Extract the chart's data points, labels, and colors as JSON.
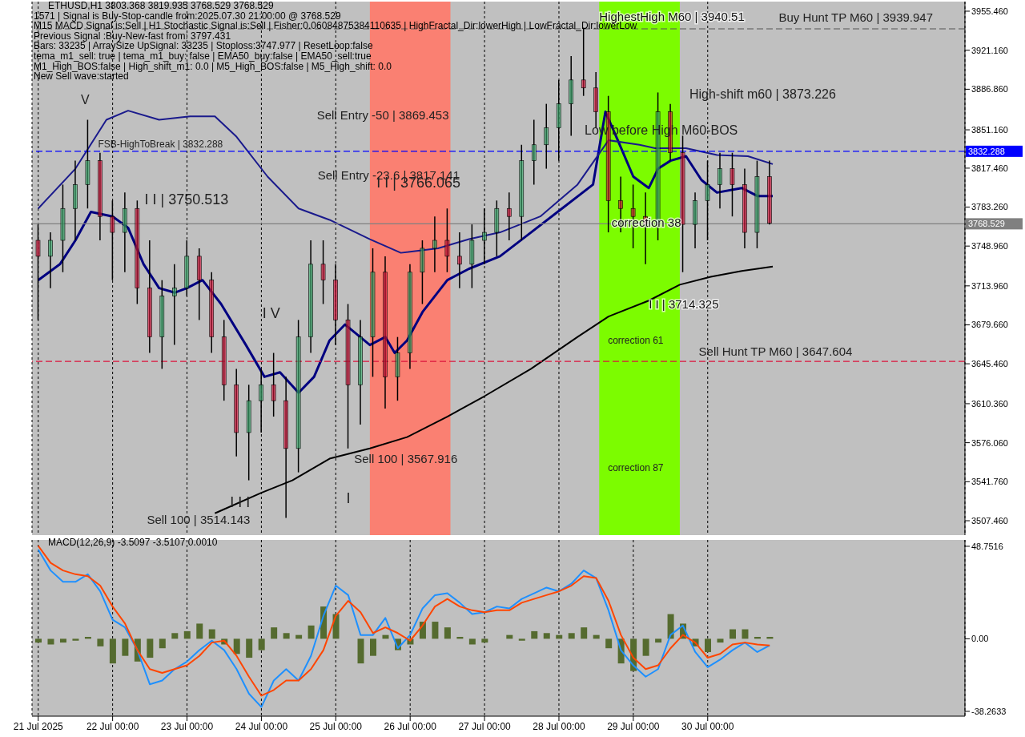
{
  "chart_data": [
    {
      "type": "candlestick",
      "title": "ETHUSD,H1  3803.368 3819.935 3768.529 3768.529",
      "x": [
        "2025-07-21T00:00",
        "2025-07-21T04:00",
        "2025-07-21T08:00",
        "2025-07-21T12:00",
        "2025-07-21T16:00",
        "2025-07-21T20:00",
        "2025-07-22T00:00",
        "2025-07-22T04:00",
        "2025-07-22T08:00",
        "2025-07-22T12:00",
        "2025-07-22T16:00",
        "2025-07-22T20:00",
        "2025-07-23T00:00",
        "2025-07-23T04:00",
        "2025-07-23T08:00",
        "2025-07-23T12:00",
        "2025-07-23T16:00",
        "2025-07-23T20:00",
        "2025-07-24T00:00",
        "2025-07-24T04:00",
        "2025-07-24T08:00",
        "2025-07-24T12:00",
        "2025-07-24T16:00",
        "2025-07-24T20:00",
        "2025-07-25T00:00",
        "2025-07-25T04:00",
        "2025-07-25T08:00",
        "2025-07-25T12:00",
        "2025-07-25T16:00",
        "2025-07-25T20:00",
        "2025-07-26T00:00",
        "2025-07-26T04:00",
        "2025-07-26T08:00",
        "2025-07-26T12:00",
        "2025-07-26T16:00",
        "2025-07-26T20:00",
        "2025-07-27T00:00",
        "2025-07-27T04:00",
        "2025-07-27T08:00",
        "2025-07-27T12:00",
        "2025-07-27T16:00",
        "2025-07-27T20:00",
        "2025-07-28T00:00",
        "2025-07-28T04:00",
        "2025-07-28T08:00",
        "2025-07-28T12:00",
        "2025-07-28T16:00",
        "2025-07-28T20:00",
        "2025-07-29T00:00",
        "2025-07-29T04:00",
        "2025-07-29T08:00",
        "2025-07-29T12:00",
        "2025-07-29T16:00",
        "2025-07-29T20:00",
        "2025-07-30T00:00",
        "2025-07-30T04:00",
        "2025-07-30T08:00",
        "2025-07-30T12:00",
        "2025-07-30T16:00",
        "2025-07-30T20:00"
      ],
      "ohlc": [
        [
          3754,
          3768,
          3684,
          3740
        ],
        [
          3740,
          3761,
          3712,
          3754
        ],
        [
          3754,
          3803,
          3726,
          3782
        ],
        [
          3782,
          3824,
          3754,
          3803
        ],
        [
          3803,
          3860,
          3782,
          3824
        ],
        [
          3824,
          3831,
          3754,
          3775
        ],
        [
          3775,
          3789,
          3719,
          3761
        ],
        [
          3761,
          3796,
          3726,
          3782
        ],
        [
          3782,
          3789,
          3698,
          3712
        ],
        [
          3712,
          3754,
          3655,
          3669
        ],
        [
          3669,
          3719,
          3641,
          3705
        ],
        [
          3705,
          3733,
          3662,
          3712
        ],
        [
          3712,
          3754,
          3705,
          3740
        ],
        [
          3740,
          3747,
          3684,
          3719
        ],
        [
          3719,
          3726,
          3655,
          3669
        ],
        [
          3669,
          3684,
          3613,
          3627
        ],
        [
          3627,
          3641,
          3564,
          3585
        ],
        [
          3585,
          3627,
          3543,
          3613
        ],
        [
          3613,
          3641,
          3585,
          3627
        ],
        [
          3627,
          3655,
          3599,
          3613
        ],
        [
          3613,
          3634,
          3510,
          3571
        ],
        [
          3571,
          3684,
          3550,
          3669
        ],
        [
          3669,
          3754,
          3655,
          3733
        ],
        [
          3733,
          3754,
          3698,
          3719
        ],
        [
          3719,
          3733,
          3662,
          3684
        ],
        [
          3684,
          3698,
          3571,
          3627
        ],
        [
          3627,
          3684,
          3592,
          3669
        ],
        [
          3669,
          3747,
          3634,
          3726
        ],
        [
          3726,
          3740,
          3606,
          3634
        ],
        [
          3634,
          3669,
          3613,
          3655
        ],
        [
          3655,
          3733,
          3641,
          3726
        ],
        [
          3726,
          3754,
          3698,
          3747
        ],
        [
          3747,
          3775,
          3726,
          3754
        ],
        [
          3754,
          3782,
          3726,
          3740
        ],
        [
          3740,
          3761,
          3712,
          3733
        ],
        [
          3733,
          3768,
          3712,
          3754
        ],
        [
          3754,
          3782,
          3733,
          3761
        ],
        [
          3761,
          3789,
          3740,
          3782
        ],
        [
          3782,
          3796,
          3754,
          3775
        ],
        [
          3775,
          3838,
          3754,
          3824
        ],
        [
          3824,
          3860,
          3803,
          3838
        ],
        [
          3838,
          3874,
          3817,
          3853
        ],
        [
          3853,
          3895,
          3824,
          3874
        ],
        [
          3874,
          3916,
          3846,
          3895
        ],
        [
          3895,
          3941,
          3881,
          3888
        ],
        [
          3888,
          3902,
          3853,
          3867
        ],
        [
          3867,
          3881,
          3761,
          3789
        ],
        [
          3789,
          3810,
          3761,
          3782
        ],
        [
          3782,
          3803,
          3747,
          3775
        ],
        [
          3775,
          3796,
          3733,
          3768
        ],
        [
          3768,
          3884,
          3754,
          3867
        ],
        [
          3867,
          3874,
          3824,
          3831
        ],
        [
          3831,
          3846,
          3726,
          3768
        ],
        [
          3768,
          3796,
          3747,
          3789
        ],
        [
          3789,
          3824,
          3754,
          3803
        ],
        [
          3803,
          3831,
          3782,
          3817
        ],
        [
          3817,
          3831,
          3775,
          3803
        ],
        [
          3803,
          3817,
          3747,
          3761
        ],
        [
          3761,
          3824,
          3747,
          3810
        ],
        [
          3810,
          3824,
          3768,
          3769
        ]
      ],
      "colors": [
        "#dc143c",
        "#3cb371",
        "#3cb371",
        "#3cb371",
        "#3cb371",
        "#dc143c",
        "#dc143c",
        "#3cb371",
        "#dc143c",
        "#dc143c",
        "#3cb371",
        "#3cb371",
        "#3cb371",
        "#dc143c",
        "#dc143c",
        "#dc143c",
        "#dc143c",
        "#3cb371",
        "#3cb371",
        "#dc143c",
        "#dc143c",
        "#3cb371",
        "#3cb371",
        "#dc143c",
        "#dc143c",
        "#dc143c",
        "#3cb371",
        "#3cb371",
        "#dc143c",
        "#3cb371",
        "#3cb371",
        "#3cb371",
        "#3cb371",
        "#dc143c",
        "#dc143c",
        "#3cb371",
        "#3cb371",
        "#3cb371",
        "#dc143c",
        "#3cb371",
        "#3cb371",
        "#3cb371",
        "#3cb371",
        "#3cb371",
        "#dc143c",
        "#dc143c",
        "#dc143c",
        "#dc143c",
        "#dc143c",
        "#dc143c",
        "#3cb371",
        "#dc143c",
        "#dc143c",
        "#3cb371",
        "#3cb371",
        "#3cb371",
        "#dc143c",
        "#dc143c",
        "#3cb371",
        "#dc143c"
      ],
      "series": [
        {
          "type": "line",
          "color": "#000000",
          "x": [
            "2025-07-23T09:00",
            "2025-07-24T00:00",
            "2025-07-24T10:00",
            "2025-07-24T22:00",
            "2025-07-25T11:00",
            "2025-07-25T23:00",
            "2025-07-26T12:00",
            "2025-07-27T00:00",
            "2025-07-27T15:00",
            "2025-07-28T06:00",
            "2025-07-28T16:00",
            "2025-07-29T05:00",
            "2025-07-29T15:00",
            "2025-07-30T01:00",
            "2025-07-30T11:00",
            "2025-07-30T21:00"
          ],
          "values": [
            3514,
            3532,
            3543,
            3562,
            3571,
            3581,
            3599,
            3617,
            3641,
            3669,
            3687,
            3701,
            3715,
            3722,
            3727,
            3731
          ]
        },
        {
          "type": "line",
          "color": "#000080",
          "x": [
            "2025-07-21T00:00",
            "2025-07-21T07:00",
            "2025-07-21T12:00",
            "2025-07-21T17:00",
            "2025-07-22T00:00",
            "2025-07-22T05:00",
            "2025-07-22T10:00",
            "2025-07-22T15:00",
            "2025-07-22T20:00",
            "2025-07-23T00:00",
            "2025-07-23T05:00",
            "2025-07-23T11:00",
            "2025-07-23T19:00",
            "2025-07-24T01:00",
            "2025-07-24T06:00",
            "2025-07-24T12:00",
            "2025-07-24T17:00",
            "2025-07-24T22:00",
            "2025-07-25T03:00",
            "2025-07-25T11:00",
            "2025-07-25T16:00",
            "2025-07-25T19:00",
            "2025-07-25T23:00",
            "2025-07-26T04:00",
            "2025-07-26T12:00",
            "2025-07-26T19:00",
            "2025-07-27T05:00",
            "2025-07-27T15:00",
            "2025-07-28T01:00",
            "2025-07-28T11:00",
            "2025-07-28T15:00",
            "2025-07-28T19:00",
            "2025-07-29T00:00",
            "2025-07-29T05:00",
            "2025-07-29T08:00",
            "2025-07-29T12:00",
            "2025-07-29T17:00",
            "2025-07-29T22:00",
            "2025-07-30T03:00",
            "2025-07-30T11:00",
            "2025-07-30T16:00",
            "2025-07-30T21:00"
          ],
          "values": [
            3719,
            3733,
            3754,
            3779,
            3775,
            3765,
            3733,
            3712,
            3708,
            3712,
            3719,
            3698,
            3662,
            3634,
            3638,
            3620,
            3634,
            3666,
            3680,
            3662,
            3669,
            3655,
            3666,
            3691,
            3719,
            3729,
            3740,
            3761,
            3782,
            3803,
            3867,
            3842,
            3810,
            3800,
            3817,
            3824,
            3828,
            3807,
            3796,
            3800,
            3793,
            3793
          ]
        },
        {
          "type": "line",
          "color": "#1a1a8c",
          "x": [
            "2025-07-21T00:00",
            "2025-07-21T12:00",
            "2025-07-21T22:00",
            "2025-07-22T05:00",
            "2025-07-22T15:00",
            "2025-07-23T01:00",
            "2025-07-23T09:00",
            "2025-07-23T16:00",
            "2025-07-24T02:00",
            "2025-07-24T12:00",
            "2025-07-24T22:00",
            "2025-07-25T11:00",
            "2025-07-25T21:00",
            "2025-07-26T09:00",
            "2025-07-26T19:00",
            "2025-07-27T05:00",
            "2025-07-27T18:00",
            "2025-07-28T06:00",
            "2025-07-28T16:00",
            "2025-07-29T02:00",
            "2025-07-29T07:00",
            "2025-07-29T17:00",
            "2025-07-30T03:00",
            "2025-07-30T13:00",
            "2025-07-30T21:00"
          ],
          "values": [
            3782,
            3817,
            3860,
            3868,
            3860,
            3863,
            3863,
            3845,
            3810,
            3782,
            3772,
            3755,
            3743,
            3747,
            3755,
            3761,
            3775,
            3803,
            3842,
            3838,
            3835,
            3835,
            3829,
            3828,
            3821
          ]
        }
      ],
      "xlim": [
        "2025-07-20T22:00",
        "2025-08-02T11:00"
      ],
      "xticks": [
        {
          "value": "2025-07-21T00:00",
          "label": null
        },
        {
          "value": "2025-07-22T00:00",
          "label": null
        },
        {
          "value": "2025-07-23T00:00",
          "label": null
        },
        {
          "value": "2025-07-24T00:00",
          "label": null
        },
        {
          "value": "2025-07-25T00:00",
          "label": null
        },
        {
          "value": "2025-07-26T00:00",
          "label": null
        },
        {
          "value": "2025-07-27T00:00",
          "label": null
        },
        {
          "value": "2025-07-28T00:00",
          "label": null
        },
        {
          "value": "2025-07-29T00:00",
          "label": null
        },
        {
          "value": "2025-07-30T00:00",
          "label": null
        }
      ],
      "ylim": [
        3494.8,
        3963.9
      ],
      "yticks": [
        {
          "value": 3955.46,
          "label": "3955.460"
        },
        {
          "value": 3921.16,
          "label": "3921.160"
        },
        {
          "value": 3886.86,
          "label": "3886.860"
        },
        {
          "value": 3851.16,
          "label": "3851.160"
        },
        {
          "value": 3817.46,
          "label": "3817.460"
        },
        {
          "value": 3783.26,
          "label": "3783.260"
        },
        {
          "value": 3748.96,
          "label": "3748.960"
        },
        {
          "value": 3713.96,
          "label": "3713.960"
        },
        {
          "value": 3679.66,
          "label": "3679.660"
        },
        {
          "value": 3645.46,
          "label": "3645.460"
        },
        {
          "value": 3610.36,
          "label": "3610.360"
        },
        {
          "value": 3576.06,
          "label": "3576.060"
        },
        {
          "value": 3541.76,
          "label": "3541.760"
        },
        {
          "value": 3507.46,
          "label": "3507.460"
        }
      ],
      "tick_labels": "y",
      "grid": "x",
      "bands": [
        {
          "axis": "x",
          "from": "2025-07-25T11:00",
          "to": "2025-07-26T13:00",
          "color": "#fa8072"
        },
        {
          "axis": "x",
          "from": "2025-07-28T13:00",
          "to": "2025-07-29T15:00",
          "color": "#7cfc00"
        }
      ],
      "ref_lines": [
        {
          "axis": "y",
          "value": 3832.288,
          "label": "3832.288",
          "color": "#0000ff",
          "line_style": "dashed"
        },
        {
          "axis": "y",
          "value": 3768.529,
          "label": "3768.529",
          "color": "#808080",
          "line_style": "solid"
        },
        {
          "axis": "y",
          "value": 3939.947,
          "color": "#555555",
          "line_style": "dashed"
        },
        {
          "axis": "y",
          "value": 3647.604,
          "color": "#dc143c",
          "line_style": "dashed"
        }
      ],
      "annotations": [
        "1571 | Signal is Buy-Stop-candle from:2025.07.30 21:00:00 @ 3768.529",
        "M15 MACD Signal is:Sell | H1 Stochastic Signal is:Sell | Fisher:0.06084875384110635 | HighFractal_Dir:lowerHigh | LowFractal_Dir:lowerLow",
        "Previous Signal :Buy-New-fast from: 3797.431",
        "Bars: 33235 | ArraySize UpSignal: 33235 | Stoploss:3747.977 | ResetLoop:false",
        "tema_m1_sell: true | tema_m1_buy: false | EMA50_buy:false | EMA50_sell:true",
        "M1_High_BOS:false | High_shift_m1: 0.0 | M5_High_BOS:false | M5_High_shift: 0.0",
        "New Sell wave:started",
        "V",
        "FSB-HighToBreak | 3832.288",
        "I I | 3750.513",
        "I V",
        "I I I",
        "Sell 100 | 3514.143",
        "I",
        "Sell Entry -50 | 3869.453",
        "Sell Entry -23.6 | 3817.141",
        "I I | 3766.065",
        "Sell 100 | 3567.916",
        "Buy Hunt TP M60 | 3939.947",
        "High-shift m60 | 3873.226",
        "Low before High  M60-BOS",
        "correction 61",
        "correction 87",
        "Sell Hunt TP M60 | 3647.604",
        {
          "text": "HighestHigh   M60 | 3940.51",
          "x": "2025-07-28T13:00",
          "y": 3950
        },
        {
          "text": "correction 38",
          "x": "2025-07-28T17:00",
          "y": 3769
        },
        {
          "text": "I I | 3714.325",
          "x": "2025-07-29T05:00",
          "y": 3697
        }
      ]
    },
    {
      "type": "bar",
      "title": "MACD(12,26,9) -3.5097 -3.5107 0.0010",
      "x": [
        "2025-07-21T00:00",
        "2025-07-21T04:00",
        "2025-07-21T08:00",
        "2025-07-21T12:00",
        "2025-07-21T16:00",
        "2025-07-21T20:00",
        "2025-07-22T00:00",
        "2025-07-22T04:00",
        "2025-07-22T08:00",
        "2025-07-22T12:00",
        "2025-07-22T16:00",
        "2025-07-22T20:00",
        "2025-07-23T00:00",
        "2025-07-23T04:00",
        "2025-07-23T08:00",
        "2025-07-23T12:00",
        "2025-07-23T16:00",
        "2025-07-23T20:00",
        "2025-07-24T00:00",
        "2025-07-24T04:00",
        "2025-07-24T08:00",
        "2025-07-24T12:00",
        "2025-07-24T16:00",
        "2025-07-24T20:00",
        "2025-07-25T00:00",
        "2025-07-25T04:00",
        "2025-07-25T08:00",
        "2025-07-25T12:00",
        "2025-07-25T16:00",
        "2025-07-25T20:00",
        "2025-07-26T00:00",
        "2025-07-26T04:00",
        "2025-07-26T08:00",
        "2025-07-26T12:00",
        "2025-07-26T16:00",
        "2025-07-26T20:00",
        "2025-07-27T00:00",
        "2025-07-27T04:00",
        "2025-07-27T08:00",
        "2025-07-27T12:00",
        "2025-07-27T16:00",
        "2025-07-27T20:00",
        "2025-07-28T00:00",
        "2025-07-28T04:00",
        "2025-07-28T08:00",
        "2025-07-28T12:00",
        "2025-07-28T16:00",
        "2025-07-28T20:00",
        "2025-07-29T00:00",
        "2025-07-29T04:00",
        "2025-07-29T08:00",
        "2025-07-29T12:00",
        "2025-07-29T16:00",
        "2025-07-29T20:00",
        "2025-07-30T00:00",
        "2025-07-30T04:00",
        "2025-07-30T08:00",
        "2025-07-30T12:00",
        "2025-07-30T16:00",
        "2025-07-30T20:00"
      ],
      "series": [
        {
          "type": "bar",
          "color": "#556b2f",
          "values": [
            -2,
            -3,
            -2,
            -1,
            1,
            -4,
            -13,
            -9,
            -12,
            -10,
            -5,
            3,
            4,
            8,
            5,
            -3,
            -8,
            -10,
            -6,
            6,
            3,
            2,
            7,
            17,
            13,
            0,
            -13,
            -9,
            2,
            -6,
            -3,
            9,
            9,
            6,
            1,
            -3,
            -2,
            0,
            2,
            -1,
            4,
            3,
            2,
            3,
            6,
            2,
            -5,
            -13,
            -17,
            -9,
            -2,
            13,
            8,
            -4,
            -7,
            -2,
            5,
            5,
            1,
            1
          ]
        },
        {
          "type": "line",
          "color": "#1e90ff",
          "values": [
            47,
            36,
            30,
            30,
            34,
            25,
            10,
            6,
            -6,
            -24,
            -22,
            -16,
            -12,
            -6,
            -1,
            -6,
            -16,
            -29,
            -36,
            -22,
            -16,
            -22,
            -9,
            12,
            28,
            23,
            2,
            2,
            11,
            -5,
            2,
            16,
            23,
            24,
            19,
            13,
            14,
            17,
            16,
            21,
            24,
            27,
            25,
            29,
            36,
            32,
            15,
            -6,
            -14,
            -20,
            -16,
            2,
            7,
            -7,
            -15,
            -11,
            -6,
            -2,
            -7,
            -3.5
          ]
        },
        {
          "type": "line",
          "color": "#ff4500",
          "values": [
            49,
            40,
            36,
            34,
            33,
            28,
            17,
            8,
            -6,
            -16,
            -18,
            -16,
            -14,
            -9,
            -2,
            -1,
            -9,
            -20,
            -30,
            -27,
            -22,
            -22,
            -16,
            -6,
            12,
            20,
            14,
            3,
            6,
            3,
            -1,
            7,
            17,
            21,
            17,
            15,
            14,
            15,
            15,
            19,
            21,
            23,
            25,
            28,
            33,
            32,
            20,
            2,
            -10,
            -16,
            -14,
            -5,
            2,
            -2,
            -10,
            -8,
            -3,
            -2,
            -3,
            -3.5
          ]
        }
      ],
      "xlim": [
        "2025-07-20T22:00",
        "2025-08-02T11:00"
      ],
      "xticks": [
        {
          "value": "2025-07-21T00:00",
          "label": "21 Jul 2025"
        },
        {
          "value": "2025-07-22T00:00",
          "label": "22 Jul 00:00"
        },
        {
          "value": "2025-07-23T00:00",
          "label": "23 Jul 00:00"
        },
        {
          "value": "2025-07-24T00:00",
          "label": "24 Jul 00:00"
        },
        {
          "value": "2025-07-25T00:00",
          "label": "25 Jul 00:00"
        },
        {
          "value": "2025-07-26T00:00",
          "label": "26 Jul 00:00"
        },
        {
          "value": "2025-07-27T00:00",
          "label": "27 Jul 00:00"
        },
        {
          "value": "2025-07-28T00:00",
          "label": "28 Jul 00:00"
        },
        {
          "value": "2025-07-29T00:00",
          "label": "29 Jul 00:00"
        },
        {
          "value": "2025-07-30T00:00",
          "label": "30 Jul 00:00"
        }
      ],
      "ylim": [
        -40.8,
        52.1
      ],
      "yticks": [
        {
          "value": 48.7516,
          "label": "48.7516"
        },
        {
          "value": 0,
          "label": "0.00"
        },
        {
          "value": -38.2633,
          "label": "-38.2633"
        }
      ],
      "grid": "x"
    }
  ]
}
